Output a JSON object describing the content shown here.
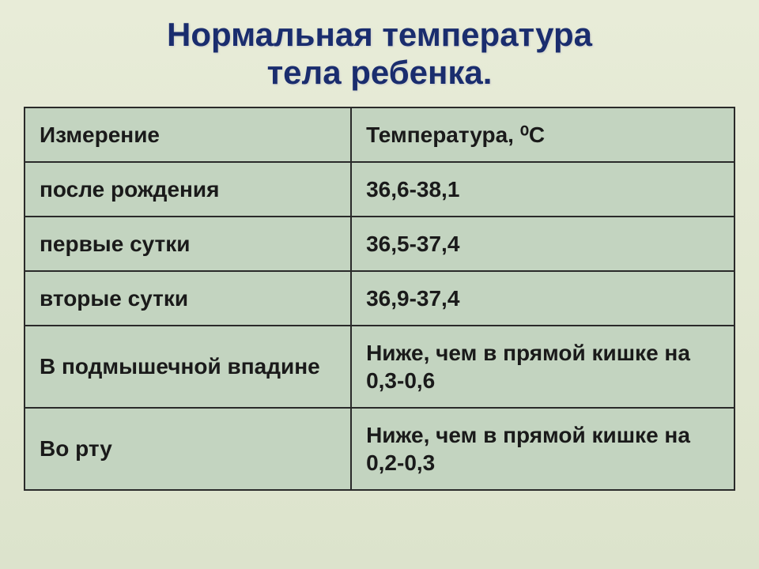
{
  "title": {
    "line1": "Нормальная температура",
    "line2": "тела ребенка."
  },
  "table": {
    "header": {
      "col1": "Измерение",
      "col2": "Температура, ⁰С"
    },
    "rows": [
      {
        "label": "после рождения",
        "value": "36,6-38,1"
      },
      {
        "label": "первые сутки",
        "value": "36,5-37,4"
      },
      {
        "label": "вторые сутки",
        "value": "36,9-37,4"
      },
      {
        "label": "В подмышечной впадине",
        "value": "Ниже, чем в прямой кишке на 0,3-0,6"
      },
      {
        "label": "Во рту",
        "value": "Ниже, чем в прямой кишке на 0,2-0,3"
      }
    ]
  },
  "style": {
    "title_color": "#1a2d6e",
    "title_fontsize": 42,
    "cell_fontsize": 28,
    "cell_bg": "#c3d4c0",
    "border_color": "#2a2a2a",
    "page_bg_top": "#e8ecd8",
    "page_bg_bottom": "#dce3cc"
  }
}
